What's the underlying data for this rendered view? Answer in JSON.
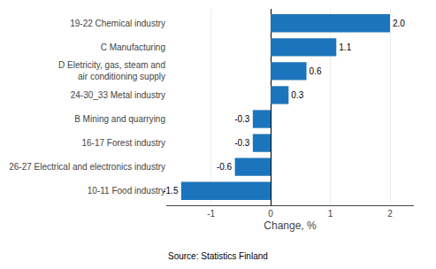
{
  "chart_data": {
    "type": "bar",
    "orientation": "horizontal",
    "categories": [
      "10-11 Food industry",
      "26-27 Electrical and electronics industry",
      "16-17 Forest industry",
      "B Mining and quarrying",
      "24-30_33 Metal industry",
      "D Eletricity, gas, steam and\nair conditioning supply",
      "C Manufacturing",
      "19-22 Chemical industry"
    ],
    "values": [
      -1.5,
      -0.6,
      -0.3,
      -0.3,
      0.3,
      0.6,
      1.1,
      2.0
    ],
    "value_labels": [
      "-1.5",
      "-0.6",
      "-0.3",
      "-0.3",
      "0.3",
      "0.6",
      "1.1",
      "2.0"
    ],
    "data_labels": true,
    "color": "#1C75BC",
    "xlabel": "Change, %",
    "annotations": [
      "Source: Statistics Finland"
    ],
    "xlim": [
      -1.75,
      2.4
    ],
    "xticks": [
      -1,
      0,
      1,
      2
    ],
    "grid": true
  }
}
